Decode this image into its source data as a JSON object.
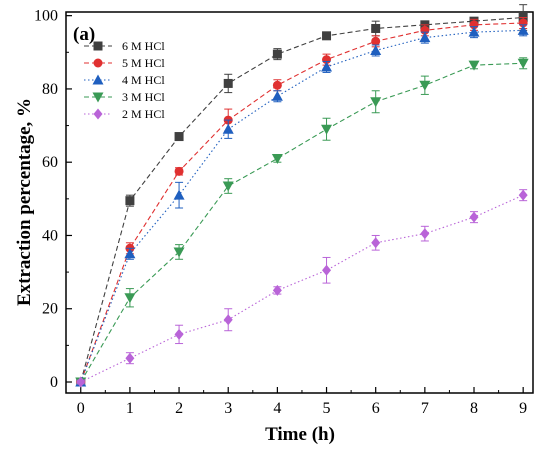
{
  "panel_label": "(a)",
  "chart_data": {
    "type": "line",
    "xlabel": "Time (h)",
    "ylabel": "Extraction percentage, %",
    "xlim": [
      -0.3,
      9.2
    ],
    "ylim": [
      -3,
      101
    ],
    "x_ticks": [
      0,
      1,
      2,
      3,
      4,
      5,
      6,
      7,
      8,
      9
    ],
    "y_ticks": [
      0,
      20,
      40,
      60,
      80,
      100
    ],
    "grid": false,
    "legend_position": "top-left",
    "x": [
      0,
      1,
      2,
      3,
      4,
      5,
      6,
      7,
      8,
      9
    ],
    "series": [
      {
        "name": "6 M HCl",
        "color": "#404040",
        "marker": "square",
        "line_style": "dashed",
        "values": [
          0,
          49.5,
          67,
          81.5,
          89.5,
          94.5,
          96.5,
          97.5,
          98.5,
          99.5
        ],
        "errors": [
          0.5,
          1.5,
          1.0,
          2.5,
          1.5,
          0.7,
          2.0,
          1.0,
          1.0,
          3.5
        ]
      },
      {
        "name": "5 M HCl",
        "color": "#e03030",
        "marker": "circle",
        "line_style": "dashed",
        "values": [
          0,
          36.5,
          57.5,
          71.5,
          81,
          88,
          93,
          96,
          97.5,
          98
        ],
        "errors": [
          0.5,
          1.5,
          1.0,
          3.0,
          1.5,
          1.5,
          1.5,
          1.5,
          1.5,
          1.5
        ]
      },
      {
        "name": "4 M HCl",
        "color": "#1f5fbf",
        "marker": "triangle-up",
        "line_style": "dotted",
        "values": [
          0,
          35,
          51,
          69,
          78,
          86,
          90.5,
          94,
          95.5,
          96
        ],
        "errors": [
          0.5,
          1.5,
          3.5,
          2.5,
          1.5,
          1.5,
          1.5,
          1.5,
          1.5,
          1.5
        ]
      },
      {
        "name": "3 M HCl",
        "color": "#3a9a55",
        "marker": "triangle-down",
        "line_style": "dashed",
        "values": [
          0,
          23,
          35.5,
          53.5,
          61,
          69,
          76.5,
          81,
          86.5,
          87
        ],
        "errors": [
          0.5,
          2.5,
          2.0,
          2.0,
          1.0,
          3.0,
          3.0,
          2.5,
          1.0,
          1.5
        ]
      },
      {
        "name": "2 M HCl",
        "color": "#b964d8",
        "marker": "diamond",
        "line_style": "dotted",
        "values": [
          0,
          6.5,
          13,
          17,
          25,
          30.5,
          38,
          40.5,
          45,
          51
        ],
        "errors": [
          0.5,
          1.5,
          2.5,
          3.0,
          1.0,
          3.5,
          2.0,
          2.0,
          1.5,
          1.5
        ]
      }
    ]
  }
}
